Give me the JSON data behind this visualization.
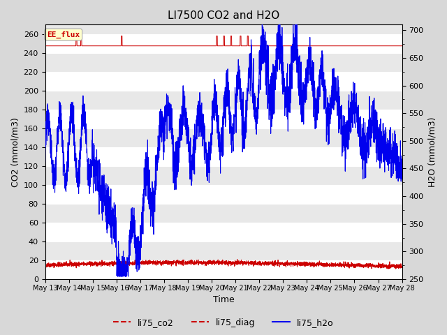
{
  "title": "LI7500 CO2 and H2O",
  "xlabel": "Time",
  "ylabel_left": "CO2 (mmol/m3)",
  "ylabel_right": "H2O (mmol/m3)",
  "ylim_left": [
    0,
    270
  ],
  "ylim_right": [
    250,
    710
  ],
  "yticks_left": [
    0,
    20,
    40,
    60,
    80,
    100,
    120,
    140,
    160,
    180,
    200,
    220,
    240,
    260
  ],
  "yticks_right": [
    250,
    300,
    350,
    400,
    450,
    500,
    550,
    600,
    650,
    700
  ],
  "xtick_labels": [
    "May 13",
    "May 14",
    "May 15",
    "May 16",
    "May 17",
    "May 18",
    "May 19",
    "May 20",
    "May 21",
    "May 22",
    "May 23",
    "May 24",
    "May 25",
    "May 26",
    "May 27",
    "May 28"
  ],
  "n_points": 3000,
  "background_color": "#d8d8d8",
  "plot_bg_color": "#e8e8e8",
  "grid_color": "#ffffff",
  "li75_co2_color": "#cc0000",
  "li75_diag_color": "#cc0000",
  "li75_h2o_color": "#0000ee",
  "ee_flux_box_facecolor": "#ffffcc",
  "ee_flux_box_edgecolor": "#aaaaaa",
  "ee_flux_text_color": "#cc0000",
  "legend_labels": [
    "li75_co2",
    "li75_diag",
    "li75_h2o"
  ],
  "title_fontsize": 11,
  "axis_label_fontsize": 9,
  "tick_fontsize": 8,
  "legend_fontsize": 9,
  "figsize": [
    6.4,
    4.8
  ],
  "dpi": 100
}
